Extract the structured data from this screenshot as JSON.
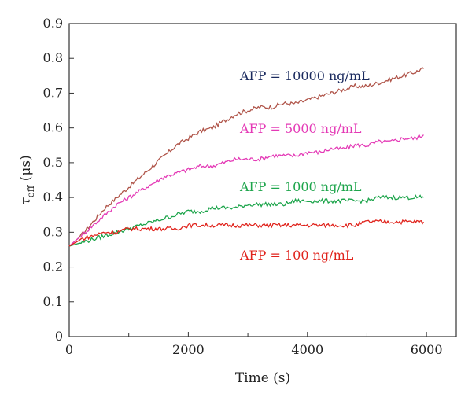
{
  "chart_data": {
    "type": "line",
    "xlabel": "Time (s)",
    "ylabel": "τeff (μs)",
    "ylabel_parts": {
      "symbol": "τ",
      "subscript": "eff",
      "unit": " (μs)"
    },
    "xlim": [
      0,
      6500
    ],
    "ylim": [
      0,
      0.9
    ],
    "xticks": [
      0,
      2000,
      4000,
      6000
    ],
    "xtick_labels": [
      "0",
      "2000",
      "4000",
      "6000"
    ],
    "yticks": [
      0,
      0.1,
      0.2,
      0.3,
      0.4,
      0.5,
      0.6,
      0.7,
      0.8,
      0.9
    ],
    "ytick_labels": [
      "0",
      "0.1",
      "0.2",
      "0.3",
      "0.4",
      "0.5",
      "0.6",
      "0.7",
      "0.8",
      "0.9"
    ],
    "grid": false,
    "series": [
      {
        "name": "AFP = 10000 ng/mL",
        "color": "#b0554a",
        "x": [
          0,
          200,
          400,
          600,
          800,
          1000,
          1200,
          1400,
          1600,
          1800,
          2000,
          2200,
          2400,
          2600,
          2800,
          3000,
          3200,
          3400,
          3600,
          3800,
          4000,
          4200,
          4400,
          4600,
          4800,
          5000,
          5200,
          5400,
          5600,
          5800,
          5950
        ],
        "y": [
          0.26,
          0.29,
          0.33,
          0.37,
          0.4,
          0.43,
          0.46,
          0.49,
          0.52,
          0.55,
          0.57,
          0.59,
          0.6,
          0.62,
          0.64,
          0.65,
          0.66,
          0.66,
          0.67,
          0.67,
          0.68,
          0.69,
          0.7,
          0.71,
          0.72,
          0.72,
          0.73,
          0.74,
          0.75,
          0.76,
          0.77
        ]
      },
      {
        "name": "AFP = 5000 ng/mL",
        "color": "#e43ab6",
        "x": [
          0,
          200,
          400,
          600,
          800,
          1000,
          1200,
          1400,
          1600,
          1800,
          2000,
          2200,
          2400,
          2600,
          2800,
          3000,
          3200,
          3400,
          3600,
          3800,
          4000,
          4200,
          4400,
          4600,
          4800,
          5000,
          5200,
          5400,
          5600,
          5800,
          5950
        ],
        "y": [
          0.26,
          0.29,
          0.32,
          0.35,
          0.38,
          0.4,
          0.42,
          0.44,
          0.46,
          0.47,
          0.48,
          0.49,
          0.49,
          0.5,
          0.51,
          0.51,
          0.51,
          0.52,
          0.52,
          0.52,
          0.53,
          0.53,
          0.54,
          0.54,
          0.55,
          0.55,
          0.56,
          0.56,
          0.57,
          0.57,
          0.58
        ]
      },
      {
        "name": "AFP = 1000 ng/mL",
        "color": "#1ea54c",
        "x": [
          0,
          200,
          400,
          600,
          800,
          1000,
          1200,
          1400,
          1600,
          1800,
          2000,
          2200,
          2400,
          2600,
          2800,
          3000,
          3200,
          3400,
          3600,
          3800,
          4000,
          4200,
          4400,
          4600,
          4800,
          5000,
          5200,
          5400,
          5600,
          5800,
          5950
        ],
        "y": [
          0.26,
          0.27,
          0.28,
          0.29,
          0.3,
          0.31,
          0.32,
          0.33,
          0.34,
          0.35,
          0.36,
          0.36,
          0.37,
          0.37,
          0.37,
          0.38,
          0.38,
          0.38,
          0.38,
          0.39,
          0.39,
          0.39,
          0.39,
          0.39,
          0.39,
          0.39,
          0.4,
          0.4,
          0.4,
          0.4,
          0.4
        ]
      },
      {
        "name": "AFP = 100 ng/mL",
        "color": "#e0231c",
        "x": [
          0,
          200,
          400,
          600,
          800,
          1000,
          1200,
          1400,
          1600,
          1800,
          2000,
          2200,
          2400,
          2600,
          2800,
          3000,
          3200,
          3400,
          3600,
          3800,
          4000,
          4200,
          4400,
          4600,
          4800,
          5000,
          5200,
          5400,
          5600,
          5800,
          5950
        ],
        "y": [
          0.26,
          0.28,
          0.29,
          0.3,
          0.3,
          0.31,
          0.31,
          0.31,
          0.31,
          0.31,
          0.32,
          0.32,
          0.32,
          0.32,
          0.32,
          0.32,
          0.32,
          0.32,
          0.32,
          0.32,
          0.32,
          0.32,
          0.32,
          0.32,
          0.32,
          0.33,
          0.33,
          0.33,
          0.33,
          0.33,
          0.33
        ]
      }
    ]
  }
}
